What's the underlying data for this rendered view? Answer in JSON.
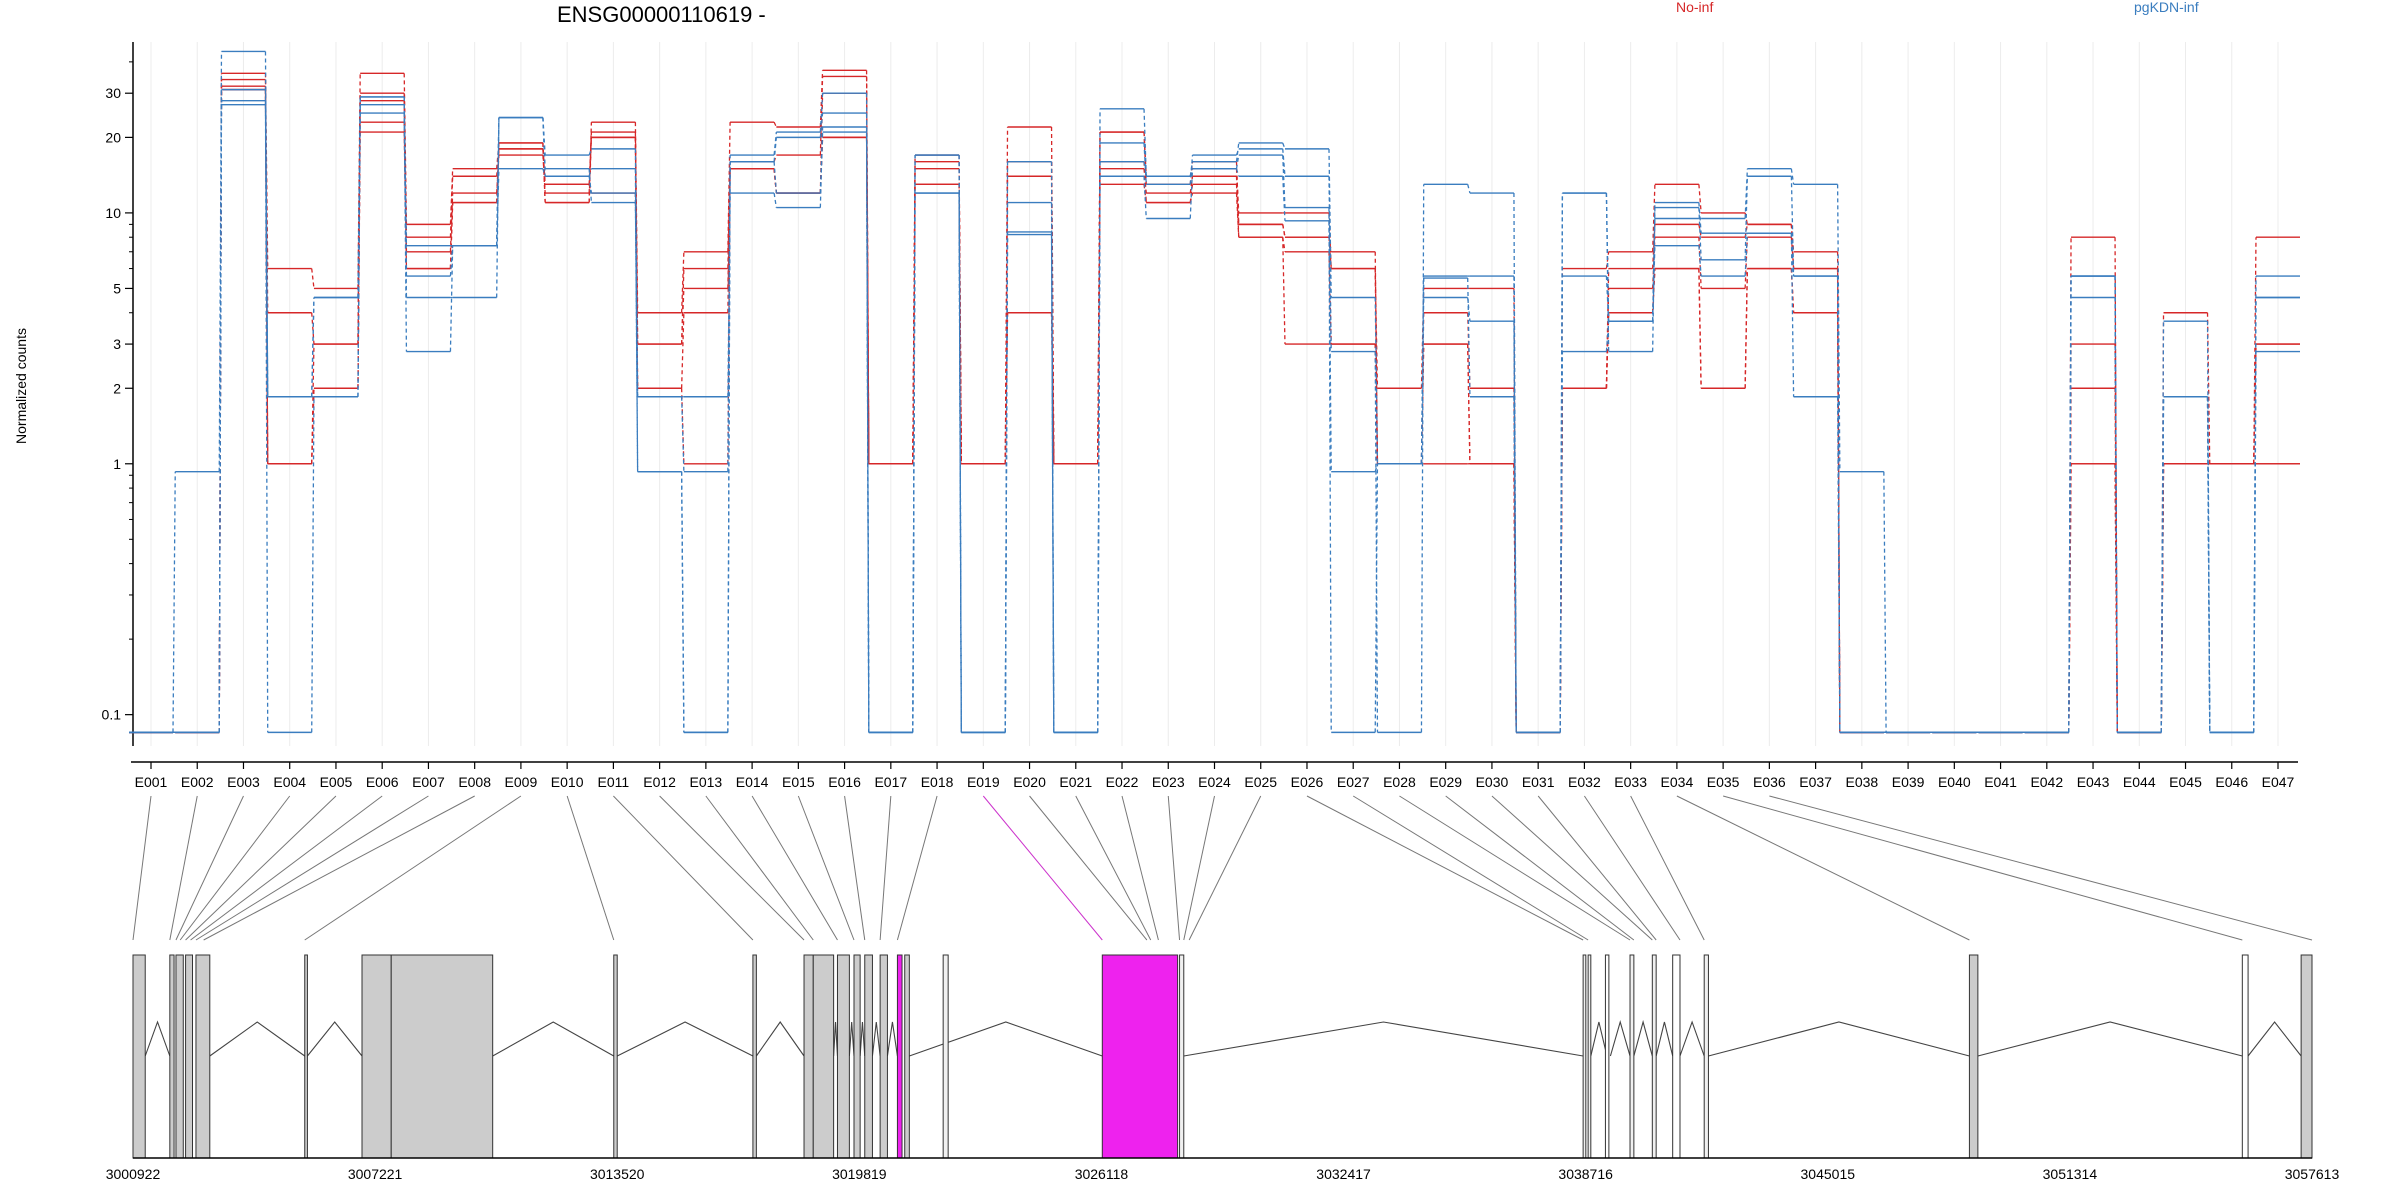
{
  "chart_data": {
    "type": "line",
    "title": "ENSG00000110619 -",
    "ylabel": "Normalized counts",
    "yscale": "log",
    "ylim": [
      0.075,
      48
    ],
    "yticks": [
      0.1,
      1,
      2,
      3,
      5,
      10,
      20,
      30
    ],
    "ytick_labels": [
      "0.1",
      "1",
      "2",
      "3",
      "5",
      "10",
      "20",
      "30"
    ],
    "legend": [
      {
        "name": "No-inf",
        "color": "#d62728"
      },
      {
        "name": "pgKDN-inf",
        "color": "#3a7dbf"
      }
    ],
    "categories": [
      "E001",
      "E002",
      "E003",
      "E004",
      "E005",
      "E006",
      "E007",
      "E008",
      "E009",
      "E010",
      "E011",
      "E012",
      "E013",
      "E014",
      "E015",
      "E016",
      "E017",
      "E018",
      "E019",
      "E020",
      "E021",
      "E022",
      "E023",
      "E024",
      "E025",
      "E026",
      "E027",
      "E028",
      "E029",
      "E030",
      "E031",
      "E032",
      "E033",
      "E034",
      "E035",
      "E036",
      "E037",
      "E038",
      "E039",
      "E040",
      "E041",
      "E042",
      "E043",
      "E044",
      "E045",
      "E046",
      "E047"
    ],
    "zero_level": 0.085,
    "series": [
      {
        "group": "No-inf",
        "values": [
          0.085,
          0.085,
          36,
          6,
          5,
          36,
          9,
          15,
          19,
          11,
          23,
          4,
          7,
          23,
          22,
          37,
          1,
          17,
          1,
          22,
          1,
          21,
          14,
          15,
          10,
          10,
          6,
          2,
          5,
          5,
          0.085,
          6,
          7,
          13,
          10,
          9,
          7,
          0.085,
          0.085,
          0.085,
          0.085,
          0.085,
          8,
          0.085,
          4,
          1,
          8
        ]
      },
      {
        "group": "No-inf",
        "values": [
          0.085,
          0.085,
          34,
          4,
          3,
          30,
          8,
          14,
          18,
          13,
          21,
          3,
          6,
          16,
          17,
          35,
          1,
          16,
          1,
          16,
          1,
          21,
          13,
          16,
          9,
          8,
          7,
          1,
          4,
          2,
          0.085,
          2,
          6,
          9,
          8,
          9,
          6,
          0.085,
          0.085,
          0.085,
          0.085,
          0.085,
          3,
          0.085,
          1,
          1,
          3
        ]
      },
      {
        "group": "No-inf",
        "values": [
          0.085,
          0.085,
          32,
          1,
          3,
          28,
          7,
          12,
          17,
          12,
          20,
          3,
          5,
          15,
          12,
          30,
          1,
          15,
          1,
          14,
          1,
          16,
          11,
          13,
          9,
          8,
          6,
          1,
          3,
          1,
          0.085,
          2,
          5,
          8,
          5,
          8,
          6,
          0.085,
          0.085,
          0.085,
          0.085,
          0.085,
          2,
          0.085,
          1,
          1,
          3
        ]
      },
      {
        "group": "No-inf",
        "values": [
          0.085,
          0.085,
          31,
          1,
          2,
          23,
          6,
          11,
          19,
          11,
          20,
          2,
          4,
          15,
          12,
          20,
          1,
          13,
          1,
          4,
          1,
          15,
          12,
          14,
          8,
          3,
          3,
          1,
          1,
          1,
          0.085,
          2,
          4,
          6,
          2,
          6,
          4,
          0.085,
          0.085,
          0.085,
          0.085,
          0.085,
          1,
          0.085,
          1,
          1,
          1
        ]
      },
      {
        "group": "No-inf",
        "values": [
          0.085,
          0.085,
          31,
          1,
          2,
          21,
          6,
          11,
          18,
          13,
          12,
          2,
          1,
          15,
          12,
          20,
          1,
          13,
          1,
          4,
          1,
          13,
          11,
          12,
          8,
          7,
          3,
          1,
          3,
          1,
          0.085,
          2,
          4,
          6,
          2,
          6,
          4,
          0.085,
          0.085,
          0.085,
          0.085,
          0.085,
          1,
          0.085,
          1,
          1,
          1
        ]
      },
      {
        "group": "pgKDN-inf",
        "values": [
          0.085,
          0.93,
          44,
          1.85,
          4.6,
          29,
          5.6,
          7.4,
          24,
          14,
          15,
          0.93,
          0.085,
          17,
          21,
          30,
          0.085,
          17,
          0.085,
          11,
          0.085,
          26,
          14,
          16,
          19,
          18,
          4.6,
          1,
          5.5,
          1.85,
          0.085,
          5.6,
          3.7,
          9.5,
          9.5,
          15,
          13,
          0.93,
          0.085,
          0.085,
          0.085,
          0.085,
          5.6,
          0.085,
          3.7,
          0.085,
          5.6
        ]
      },
      {
        "group": "pgKDN-inf",
        "values": [
          0.085,
          0.085,
          28,
          0.085,
          1.85,
          29,
          4.6,
          4.6,
          24,
          17,
          18,
          1.85,
          0.93,
          16,
          20,
          25,
          0.085,
          17,
          0.085,
          8.4,
          0.085,
          19,
          13,
          17,
          18,
          14,
          2.8,
          0.085,
          13,
          12,
          0.085,
          12,
          2.8,
          10.5,
          6.5,
          14,
          5.6,
          0.085,
          0.085,
          0.085,
          0.085,
          0.085,
          4.6,
          0.085,
          1.85,
          0.085,
          4.6
        ]
      },
      {
        "group": "pgKDN-inf",
        "values": [
          0.085,
          0.085,
          27,
          1.85,
          1.85,
          27,
          2.8,
          7.4,
          24,
          15,
          11,
          1.85,
          1.85,
          12,
          10.5,
          22,
          0.085,
          12,
          0.085,
          8.2,
          0.085,
          14,
          9.5,
          15,
          14,
          9.3,
          0.93,
          1,
          4.6,
          3.7,
          0.085,
          2.8,
          3.7,
          7.4,
          5.6,
          8.3,
          1.85,
          0.085,
          0.085,
          0.085,
          0.085,
          0.085,
          5.6,
          0.085,
          1.85,
          0.085,
          2.8
        ]
      },
      {
        "group": "pgKDN-inf",
        "values": [
          0.085,
          0.085,
          31,
          1.85,
          4.6,
          25,
          7.4,
          7.4,
          15,
          14,
          12,
          0.93,
          0.085,
          16,
          12,
          21,
          0.085,
          12,
          0.085,
          16,
          0.085,
          16,
          14,
          15,
          17,
          10.5,
          0.085,
          1,
          5.6,
          5.6,
          0.085,
          12,
          3.7,
          11,
          8.3,
          8.3,
          5.6,
          0.085,
          0.085,
          0.085,
          0.085,
          0.085,
          5.6,
          0.085,
          1.85,
          0.085,
          4.6
        ]
      }
    ],
    "gene_model": {
      "xlim": [
        3000922,
        3057613
      ],
      "xticks": [
        3000922,
        3007221,
        3013520,
        3019819,
        3026118,
        3032417,
        3038716,
        3045015,
        3051314,
        3057613
      ],
      "exons": [
        {
          "start": 3000922,
          "end": 3001240,
          "fill": "#cccccc"
        },
        {
          "start": 3001880,
          "end": 3001990,
          "fill": "#cccccc"
        },
        {
          "start": 3002040,
          "end": 3002230,
          "fill": "#cccccc"
        },
        {
          "start": 3002290,
          "end": 3002470,
          "fill": "#cccccc"
        },
        {
          "start": 3002560,
          "end": 3002920,
          "fill": "#cccccc"
        },
        {
          "start": 3005390,
          "end": 3005460,
          "fill": "#cccccc"
        },
        {
          "start": 3006880,
          "end": 3007640,
          "fill": "#cccccc"
        },
        {
          "start": 3007640,
          "end": 3010280,
          "fill": "#cccccc"
        },
        {
          "start": 3013430,
          "end": 3013520,
          "fill": "#cccccc"
        },
        {
          "start": 3017050,
          "end": 3017140,
          "fill": "#cccccc"
        },
        {
          "start": 3018380,
          "end": 3018620,
          "fill": "#cccccc"
        },
        {
          "start": 3018620,
          "end": 3019150,
          "fill": "#cccccc"
        },
        {
          "start": 3019250,
          "end": 3019560,
          "fill": "#cccccc"
        },
        {
          "start": 3019680,
          "end": 3019840,
          "fill": "#cccccc"
        },
        {
          "start": 3019960,
          "end": 3020160,
          "fill": "#cccccc"
        },
        {
          "start": 3020360,
          "end": 3020550,
          "fill": "#cccccc"
        },
        {
          "start": 3021000,
          "end": 3021120,
          "fill": "#cccccc"
        },
        {
          "start": 3022000,
          "end": 3022130,
          "fill": "#f0f0f0"
        },
        {
          "start": 3027300,
          "end": 3027410,
          "fill": "#f0f0f0"
        },
        {
          "start": 3028150,
          "end": 3028260,
          "fill": "#f0f0f0"
        },
        {
          "start": 3038650,
          "end": 3038720,
          "fill": "#f0f0f0"
        },
        {
          "start": 3038780,
          "end": 3038850,
          "fill": "#f0f0f0"
        },
        {
          "start": 3039870,
          "end": 3039970,
          "fill": "#f0f0f0"
        },
        {
          "start": 3040450,
          "end": 3040550,
          "fill": "#f0f0f0"
        },
        {
          "start": 3041800,
          "end": 3041910,
          "fill": "#f0f0f0"
        }
      ],
      "highlight_exons": [
        {
          "start": 3020810,
          "end": 3020930,
          "fill": "#ee22ee"
        },
        {
          "start": 3026140,
          "end": 3028100,
          "fill": "#ee22ee"
        }
      ],
      "introns": [
        [
          3001240,
          3001880
        ],
        [
          3002920,
          3005390
        ],
        [
          3005460,
          3006880
        ],
        [
          3010280,
          3013430
        ],
        [
          3013520,
          3017050
        ],
        [
          3017140,
          3018380
        ],
        [
          3019150,
          3019250
        ],
        [
          3019560,
          3019680
        ],
        [
          3019840,
          3019960
        ],
        [
          3020160,
          3020360
        ],
        [
          3020550,
          3020810
        ],
        [
          3021120,
          3026140
        ],
        [
          3028260,
          3038650
        ],
        [
          3038850,
          3039270
        ],
        [
          3039360,
          3039870
        ],
        [
          3039970,
          3040450
        ],
        [
          3040550,
          3040980
        ],
        [
          3041170,
          3041800
        ],
        [
          3041910,
          3048700
        ],
        [
          3048920,
          3055800
        ],
        [
          3055950,
          3057330
        ]
      ],
      "bars": [
        {
          "start": 3039230,
          "end": 3039320,
          "fill": "#ffffff"
        },
        {
          "start": 3040980,
          "end": 3041170,
          "fill": "#ffffff"
        },
        {
          "start": 3048700,
          "end": 3048920,
          "fill": "#cccccc"
        },
        {
          "start": 3055800,
          "end": 3055950,
          "fill": "#ffffff"
        },
        {
          "start": 3057330,
          "end": 3057613,
          "fill": "#cccccc"
        }
      ],
      "exon_map": [
        3000922,
        3001880,
        3002040,
        3002150,
        3002290,
        3002420,
        3002560,
        3002760,
        3005390,
        3013430,
        3017050,
        3018380,
        3018620,
        3019250,
        3019680,
        3019960,
        3020360,
        3020810,
        3026140,
        3027300,
        3027400,
        3027600,
        3028150,
        3028260,
        3028400,
        3038650,
        3038780,
        3039870,
        3039970,
        3040450,
        3040550,
        3041170,
        3041800,
        3048700,
        3055800,
        3057613
      ],
      "highlighted_link": 18
    }
  }
}
